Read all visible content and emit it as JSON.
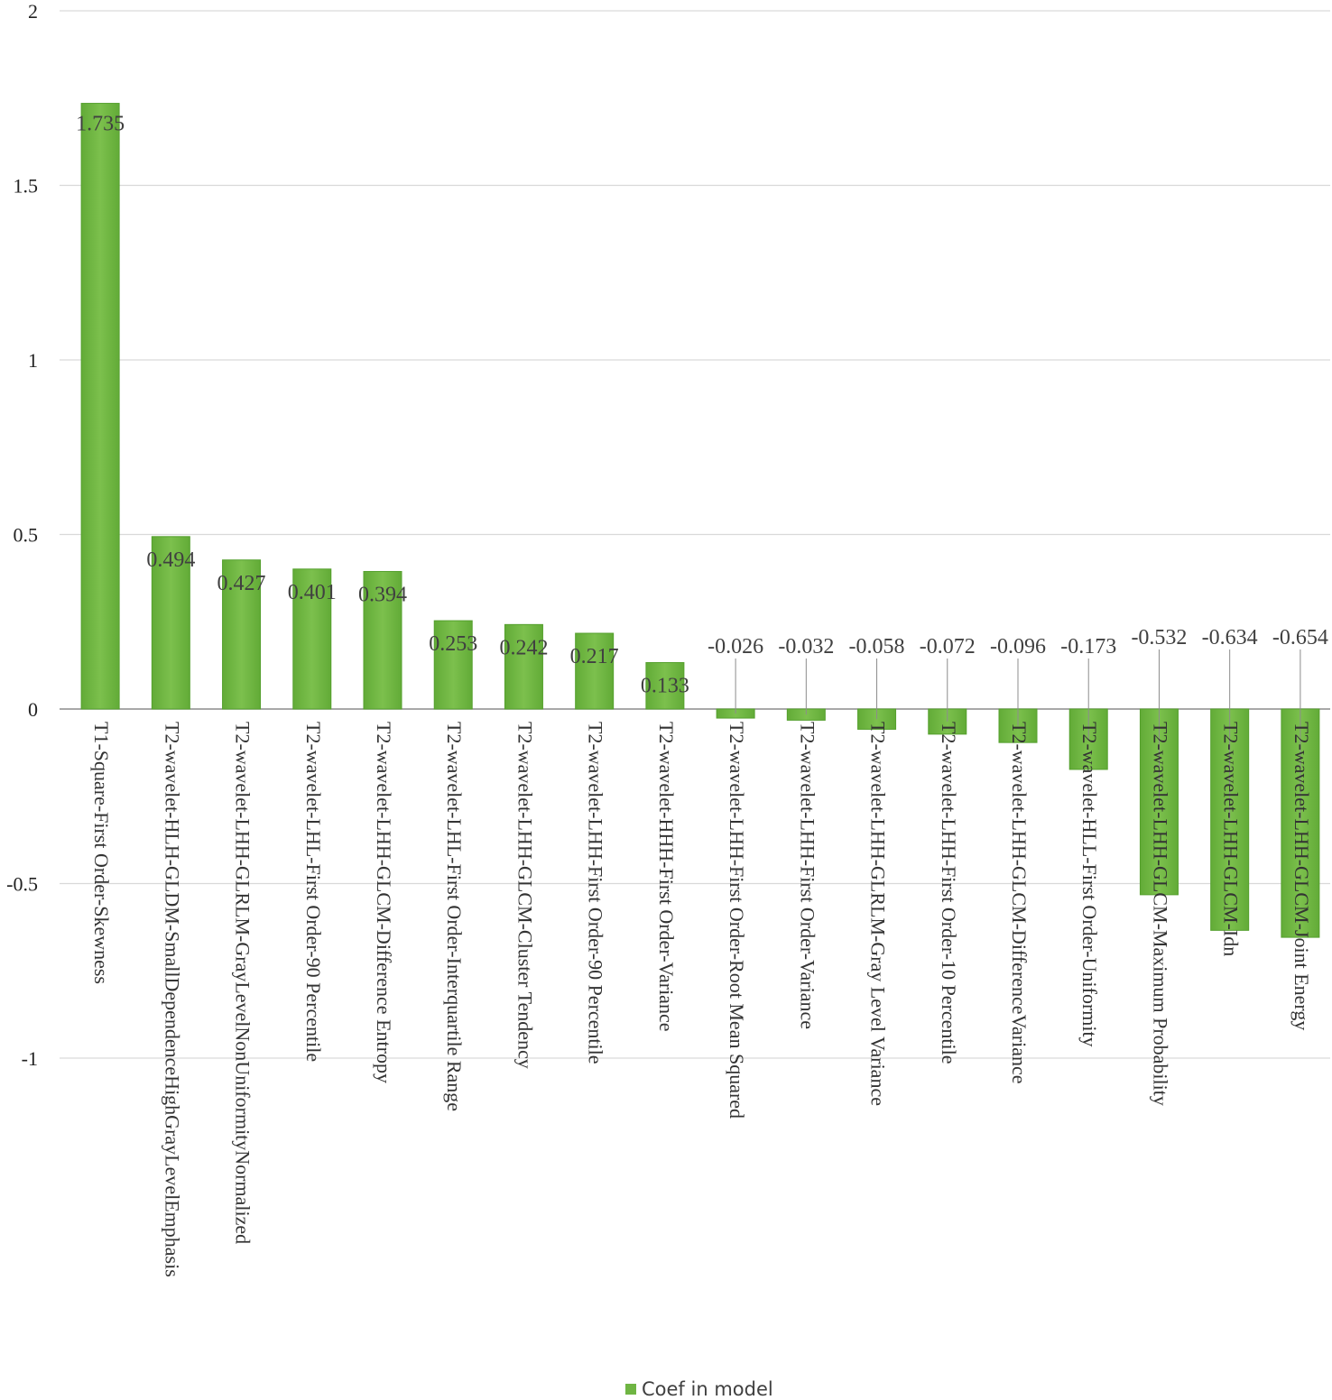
{
  "chart_data": {
    "type": "bar",
    "categories": [
      "T1-Square-First Order-Skewness",
      "T2-wavelet-HLH-GLDM-SmallDependenceHighGrayLevelEmphasis",
      "T2-wavelet-LHH-GLRLM-GrayLevelNonUniformityNormalized",
      "T2-wavelet-LHL-First Order-90 Percentile",
      "T2-wavelet-LHH-GLCM-Difference Entropy",
      "T2-wavelet-LHL-First Order-Interquartile Range",
      "T2-wavelet-LHH-GLCM-Cluster Tendency",
      "T2-wavelet-LHH-First Order-90 Percentile",
      "T2-wavelet-HHH-First Order-Variance",
      "T2-wavelet-LHH-First Order-Root Mean Squared",
      "T2-wavelet-LHH-First Order-Variance",
      "T2-wavelet-LHH-GLRLM-Gray Level Variance",
      "T2-wavelet-LHH-First Order-10 Percentile",
      "T2-wavelet-LHH-GLCM-DifferenceVariance",
      "T2-wavelet-HLL-First Order-Uniformity",
      "T2-wavelet-LHH-GLCM-Maximum Probability",
      "T2-wavelet-LHH-GLCM-Idn",
      "T2-wavelet-LHH-GLCM-Joint Energy"
    ],
    "series": [
      {
        "name": "Coef in model",
        "values": [
          1.735,
          0.494,
          0.427,
          0.401,
          0.394,
          0.253,
          0.242,
          0.217,
          0.133,
          -0.026,
          -0.032,
          -0.058,
          -0.072,
          -0.096,
          -0.173,
          -0.532,
          -0.634,
          -0.654
        ]
      }
    ],
    "data_labels": [
      "1.735",
      "0.494",
      "0.427",
      "0.401",
      "0.394",
      "0.253",
      "0.242",
      "0.217",
      "0.133",
      "-0.026",
      "-0.032",
      "-0.058",
      "-0.072",
      "-0.096",
      "-0.173",
      "-0.532",
      "-0.634",
      "-0.654"
    ],
    "yticks": [
      2,
      1.5,
      1,
      0.5,
      0,
      -0.5,
      -1
    ],
    "ytick_labels": [
      "2",
      "1.5",
      "1",
      "0.5",
      "0",
      "-0.5",
      "-1"
    ],
    "ylim": [
      -1,
      2
    ],
    "grid": true,
    "legend_position": "bottom",
    "title": "",
    "xlabel": "",
    "ylabel": ""
  },
  "colors": {
    "bar": "#6fb543",
    "bar_edge": "#55a02e",
    "bar_highlight": "#8cc95e",
    "grid": "#d9d9d9",
    "axis": "#8c8c8c",
    "leader": "#8c8c8c"
  }
}
